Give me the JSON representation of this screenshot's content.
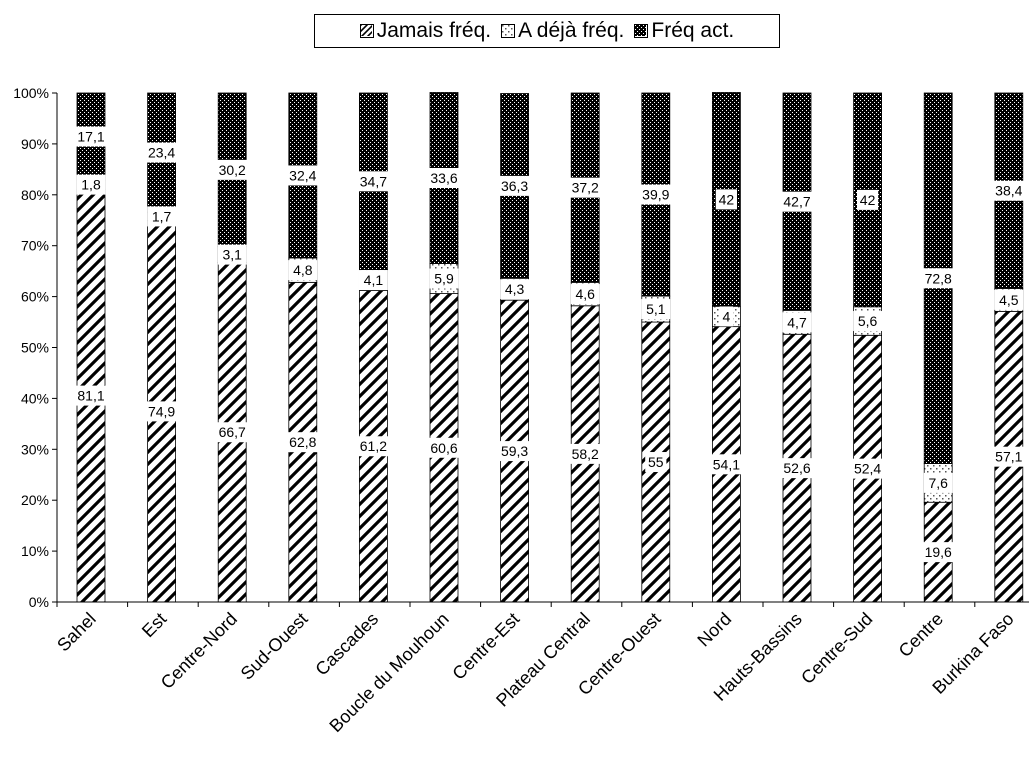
{
  "chart_data": {
    "type": "bar",
    "stacked": true,
    "percent": true,
    "categories": [
      "Sahel",
      "Est",
      "Centre-Nord",
      "Sud-Ouest",
      "Cascades",
      "Boucle du Mouhoun",
      "Centre-Est",
      "Plateau Central",
      "Centre-Ouest",
      "Nord",
      "Hauts-Bassins",
      "Centre-Sud",
      "Centre",
      "Burkina Faso"
    ],
    "series": [
      {
        "name": "Jamais fréq.",
        "pattern": "diagonal-hatch",
        "values": [
          81.1,
          74.9,
          66.7,
          62.8,
          61.2,
          60.6,
          59.3,
          58.2,
          55,
          54.1,
          52.6,
          52.4,
          19.6,
          57.1
        ],
        "labels": [
          "81,1",
          "74,9",
          "66,7",
          "62,8",
          "61,2",
          "60,6",
          "59,3",
          "58,2",
          "55",
          "54,1",
          "52,6",
          "52,4",
          "19,6",
          "57,1"
        ]
      },
      {
        "name": "A déjà fréq.",
        "pattern": "cross-dots",
        "values": [
          1.8,
          1.7,
          3.1,
          4.8,
          4.1,
          5.9,
          4.3,
          4.6,
          5.1,
          4,
          4.7,
          5.6,
          7.6,
          4.5
        ],
        "labels": [
          "1,8",
          "1,7",
          "3,1",
          "4,8",
          "4,1",
          "5,9",
          "4,3",
          "4,6",
          "5,1",
          "4",
          "4,7",
          "5,6",
          "7,6",
          "4,5"
        ]
      },
      {
        "name": "Fréq act.",
        "pattern": "dense-dots",
        "values": [
          17.1,
          23.4,
          30.2,
          32.4,
          34.7,
          33.6,
          36.3,
          37.2,
          39.9,
          42,
          42.7,
          42,
          72.8,
          38.4
        ],
        "labels": [
          "17,1",
          "23,4",
          "30,2",
          "32,4",
          "34,7",
          "33,6",
          "36,3",
          "37,2",
          "39,9",
          "42",
          "42,7",
          "42",
          "72,8",
          "38,4"
        ]
      }
    ],
    "ylim": [
      0,
      100
    ],
    "yticks": [
      "0%",
      "10%",
      "20%",
      "30%",
      "40%",
      "50%",
      "60%",
      "70%",
      "80%",
      "90%",
      "100%"
    ],
    "legend_position": "top",
    "grid": false
  }
}
